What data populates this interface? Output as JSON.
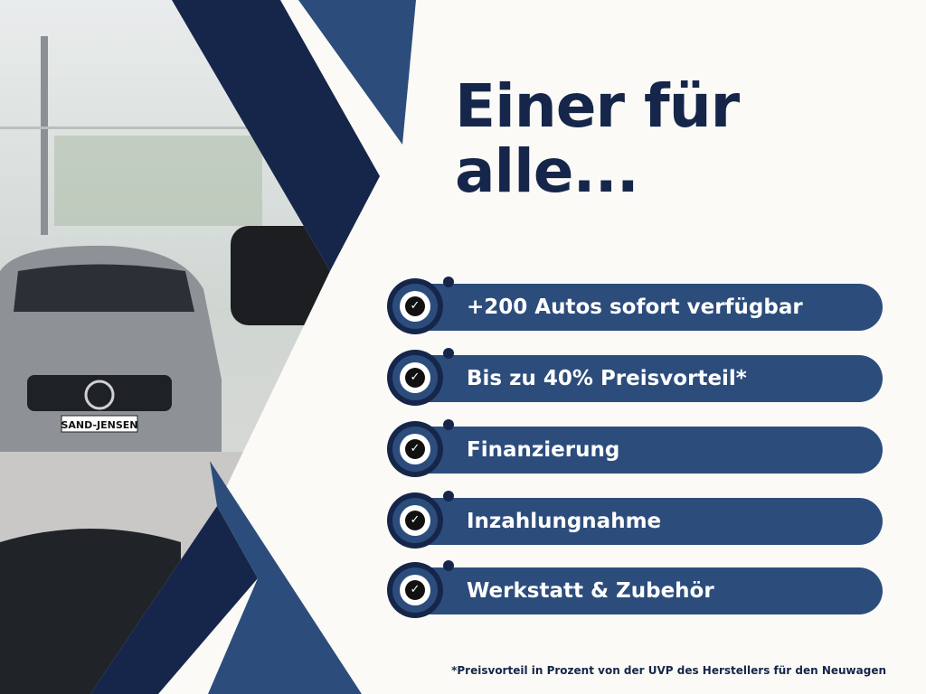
{
  "headline": {
    "line1": "Einer für",
    "line2": "alle..."
  },
  "features": [
    {
      "label": "+200 Autos sofort verfügbar",
      "icon": "check-circle-icon"
    },
    {
      "label": "Bis zu 40% Preisvorteil*",
      "icon": "check-circle-icon"
    },
    {
      "label": "Finanzierung",
      "icon": "check-circle-icon"
    },
    {
      "label": "Inzahlungnahme",
      "icon": "check-circle-icon"
    },
    {
      "label": "Werkstatt & Zubehör",
      "icon": "check-circle-icon"
    }
  ],
  "footnote": "*Preisvorteil in Prozent von der UVP des Herstellers für den Neuwagen",
  "photo": {
    "license_plate": "SAND-JENSEN"
  },
  "colors": {
    "navy": "#16264a",
    "blue": "#2c4d7c",
    "background": "#fbfaf6"
  }
}
